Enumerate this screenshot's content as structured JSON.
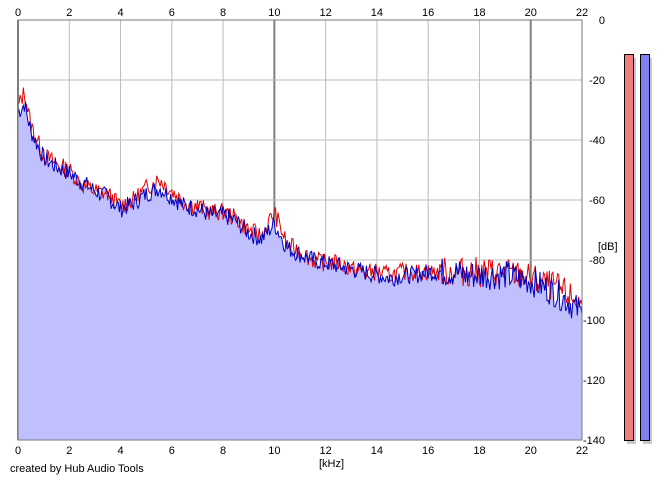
{
  "app": {
    "credit": "created by Hub Audio Tools"
  },
  "meters": {
    "left_color": "#f08080",
    "right_color": "#8080f0"
  },
  "chart_data": {
    "type": "line",
    "xlabel": "[kHz]",
    "ylabel": "[dB]",
    "xlim": [
      0,
      22
    ],
    "ylim": [
      -140,
      0
    ],
    "x_ticks": [
      "0",
      "2",
      "4",
      "6",
      "8",
      "10",
      "12",
      "14",
      "16",
      "18",
      "20",
      "22"
    ],
    "y_ticks": [
      "0",
      "-20",
      "-40",
      "-60",
      "-80",
      "-100",
      "-120",
      "-140"
    ],
    "grid": true,
    "fill_color": "#c0c0ff",
    "series": [
      {
        "color": "#e00000",
        "x": [
          0.0,
          0.25,
          0.5,
          1,
          1.5,
          2,
          2.5,
          3,
          3.5,
          4,
          4.5,
          5,
          5.5,
          6,
          6.5,
          7,
          7.5,
          8,
          8.5,
          9,
          9.5,
          10,
          10.5,
          11,
          11.5,
          12,
          12.5,
          13,
          13.5,
          14,
          14.5,
          15,
          15.5,
          16,
          16.5,
          17,
          17.5,
          18,
          18.5,
          19,
          19.5,
          20,
          20.5,
          21,
          21.5,
          22
        ],
        "values": [
          -29,
          -24,
          -35,
          -45,
          -48,
          -50,
          -55,
          -57,
          -58,
          -62,
          -60,
          -56,
          -53,
          -57,
          -61,
          -62,
          -64,
          -64,
          -66,
          -70,
          -72,
          -64,
          -75,
          -77,
          -80,
          -81,
          -81,
          -83,
          -84,
          -84,
          -85,
          -84,
          -84,
          -84,
          -84,
          -84,
          -84,
          -84,
          -84,
          -84,
          -85,
          -86,
          -88,
          -89,
          -92,
          -95
        ]
      },
      {
        "color": "#0000c0",
        "x": [
          0.0,
          0.25,
          0.5,
          1,
          1.5,
          2,
          2.5,
          3,
          3.5,
          4,
          4.5,
          5,
          5.5,
          6,
          6.5,
          7,
          7.5,
          8,
          8.5,
          9,
          9.5,
          10,
          10.5,
          11,
          11.5,
          12,
          12.5,
          13,
          13.5,
          14,
          14.5,
          15,
          15.5,
          16,
          16.5,
          17,
          17.5,
          18,
          18.5,
          19,
          19.5,
          20,
          20.5,
          21,
          21.5,
          22
        ],
        "values": [
          -31,
          -28,
          -37,
          -46,
          -49,
          -51,
          -54,
          -57,
          -59,
          -63,
          -61,
          -58,
          -56,
          -59,
          -62,
          -63,
          -65,
          -65,
          -67,
          -71,
          -73,
          -68,
          -76,
          -78,
          -80,
          -81,
          -82,
          -83,
          -84,
          -85,
          -86,
          -85,
          -85,
          -84,
          -84,
          -84,
          -85,
          -85,
          -85,
          -85,
          -86,
          -87,
          -89,
          -91,
          -94,
          -98
        ]
      }
    ]
  }
}
